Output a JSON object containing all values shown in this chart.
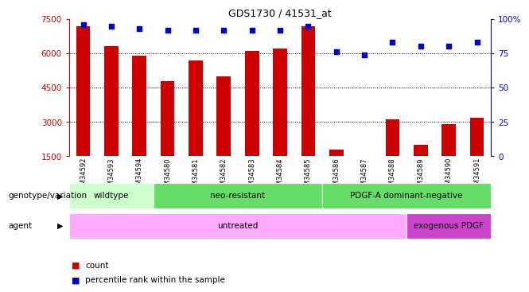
{
  "title": "GDS1730 / 41531_at",
  "samples": [
    "GSM34592",
    "GSM34593",
    "GSM34594",
    "GSM34580",
    "GSM34581",
    "GSM34582",
    "GSM34583",
    "GSM34584",
    "GSM34585",
    "GSM34586",
    "GSM34587",
    "GSM34588",
    "GSM34589",
    "GSM34590",
    "GSM34591"
  ],
  "counts": [
    7200,
    6300,
    5900,
    4800,
    5700,
    5000,
    6100,
    6200,
    7200,
    1800,
    1500,
    3100,
    2000,
    2900,
    3200
  ],
  "percentiles": [
    96,
    95,
    93,
    92,
    92,
    92,
    92,
    92,
    95,
    76,
    74,
    83,
    80,
    80,
    83
  ],
  "ylim_left": [
    1500,
    7500
  ],
  "ylim_right": [
    0,
    100
  ],
  "yticks_left": [
    1500,
    3000,
    4500,
    6000,
    7500
  ],
  "yticks_right": [
    0,
    25,
    50,
    75,
    100
  ],
  "grid_yticks": [
    3000,
    4500,
    6000
  ],
  "bar_color": "#cc0000",
  "dot_color": "#0000cc",
  "bar_width": 0.5,
  "tick_color_left": "#cc0000",
  "tick_color_right": "#0000cc",
  "genotype_groups": [
    {
      "label": "wildtype",
      "start": 0,
      "end": 3,
      "color": "#ccffcc"
    },
    {
      "label": "neo-resistant",
      "start": 3,
      "end": 9,
      "color": "#66dd66"
    },
    {
      "label": "PDGF-A dominant-negative",
      "start": 9,
      "end": 15,
      "color": "#66dd66"
    }
  ],
  "agent_groups": [
    {
      "label": "untreated",
      "start": 0,
      "end": 12,
      "color": "#ffaaff"
    },
    {
      "label": "exogenous PDGF",
      "start": 12,
      "end": 15,
      "color": "#cc44cc"
    }
  ],
  "legend_count_color": "#cc0000",
  "legend_pct_color": "#0000cc",
  "label_genotype": "genotype/variation",
  "label_agent": "agent"
}
